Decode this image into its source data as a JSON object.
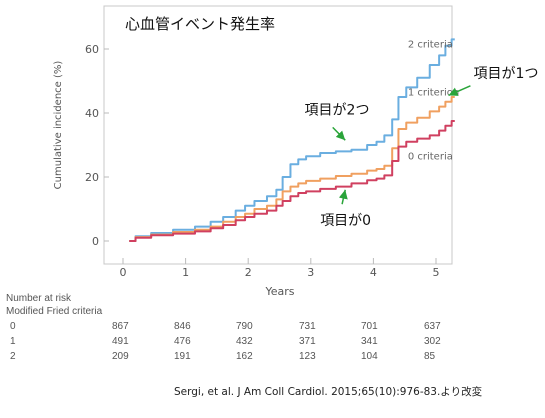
{
  "chart_data": {
    "type": "line",
    "title": "心血管イベント発生率",
    "xlabel": "Years",
    "ylabel": "Cumulative incidence (%)",
    "xlim": [
      0,
      5.3
    ],
    "ylim": [
      0,
      65
    ],
    "xticks": [
      0,
      1,
      2,
      3,
      4,
      5
    ],
    "yticks": [
      0,
      20,
      40,
      60
    ],
    "grid": false,
    "series": [
      {
        "name": "2 criteria",
        "color": "#6aaee0",
        "x": [
          0.1,
          0.3,
          0.6,
          1.0,
          1.3,
          1.5,
          1.7,
          1.9,
          2.0,
          2.2,
          2.4,
          2.5,
          2.6,
          2.75,
          2.85,
          3.0,
          3.3,
          3.5,
          3.8,
          4.0,
          4.1,
          4.25,
          4.35,
          4.45,
          4.6,
          4.8,
          5.0,
          5.1,
          5.2,
          5.3
        ],
        "y": [
          0,
          1.5,
          2.5,
          3.5,
          4.5,
          6,
          7.5,
          9.5,
          11,
          12.5,
          14,
          16,
          20,
          24,
          25.5,
          26.5,
          27.5,
          28,
          28.5,
          30,
          31,
          33,
          38,
          45,
          48,
          51,
          55,
          58,
          61,
          63
        ]
      },
      {
        "name": "1 criterion",
        "color": "#f0a060",
        "x": [
          0.1,
          0.3,
          0.6,
          1.0,
          1.3,
          1.5,
          1.7,
          1.9,
          2.0,
          2.2,
          2.4,
          2.5,
          2.6,
          2.75,
          2.85,
          3.0,
          3.3,
          3.5,
          3.8,
          4.0,
          4.1,
          4.25,
          4.35,
          4.45,
          4.6,
          4.8,
          5.0,
          5.1,
          5.2,
          5.3
        ],
        "y": [
          0,
          1.2,
          2,
          2.8,
          3.5,
          4.5,
          6,
          7.5,
          8.5,
          10,
          11,
          13,
          15.5,
          17,
          18,
          18.8,
          19.5,
          20.3,
          21,
          22,
          22.5,
          23.5,
          29,
          35,
          37,
          38.5,
          40.5,
          42,
          43.5,
          45
        ]
      },
      {
        "name": "0 criteria",
        "color": "#d04060",
        "x": [
          0.1,
          0.3,
          0.6,
          1.0,
          1.3,
          1.5,
          1.7,
          1.9,
          2.0,
          2.2,
          2.4,
          2.5,
          2.6,
          2.75,
          2.85,
          3.0,
          3.3,
          3.5,
          3.8,
          4.0,
          4.1,
          4.25,
          4.35,
          4.45,
          4.6,
          4.8,
          5.0,
          5.1,
          5.2,
          5.3
        ],
        "y": [
          0,
          1,
          1.8,
          2.3,
          3,
          4,
          5,
          6.5,
          7.5,
          8.5,
          9.5,
          11,
          12.5,
          14,
          15,
          15.5,
          16.3,
          17,
          18,
          19,
          19.5,
          20.5,
          25,
          29.5,
          31,
          32,
          33,
          34.5,
          36,
          37.5
        ]
      }
    ],
    "series_labels": [
      {
        "text": "2 criteria",
        "x": 4.55,
        "y": 60.5,
        "color": "#666666"
      },
      {
        "text": "1 criterion",
        "x": 4.55,
        "y": 45.5,
        "color": "#666666"
      },
      {
        "text": "0 criteria",
        "x": 4.55,
        "y": 25.5,
        "color": "#666666"
      }
    ],
    "annotations": [
      {
        "text": "項目が1つ",
        "text_x": 5.6,
        "text_y": 51,
        "arrow_from": [
          5.55,
          48.5
        ],
        "arrow_to": [
          5.2,
          45.5
        ],
        "color": "#2aa43a"
      },
      {
        "text": "項目が2つ",
        "text_x": 2.9,
        "text_y": 39.5,
        "arrow_from": [
          3.35,
          35.5
        ],
        "arrow_to": [
          3.55,
          31.5
        ],
        "color": "#2aa43a"
      },
      {
        "text": "項目が0",
        "text_x": 3.15,
        "text_y": 5,
        "arrow_from": [
          3.5,
          11.5
        ],
        "arrow_to": [
          3.55,
          16
        ],
        "color": "#2aa43a"
      }
    ],
    "risk_table": {
      "header": [
        "Number at risk",
        "Modified Fried criteria"
      ],
      "rows": [
        {
          "label": "0",
          "values": [
            867,
            846,
            790,
            731,
            701,
            637
          ]
        },
        {
          "label": "1",
          "values": [
            491,
            476,
            432,
            371,
            341,
            302
          ]
        },
        {
          "label": "2",
          "values": [
            209,
            191,
            162,
            123,
            104,
            85
          ]
        }
      ]
    }
  },
  "citation": "Sergi, et al. J Am Coll Cardiol. 2015;65(10):976-83.より改変"
}
